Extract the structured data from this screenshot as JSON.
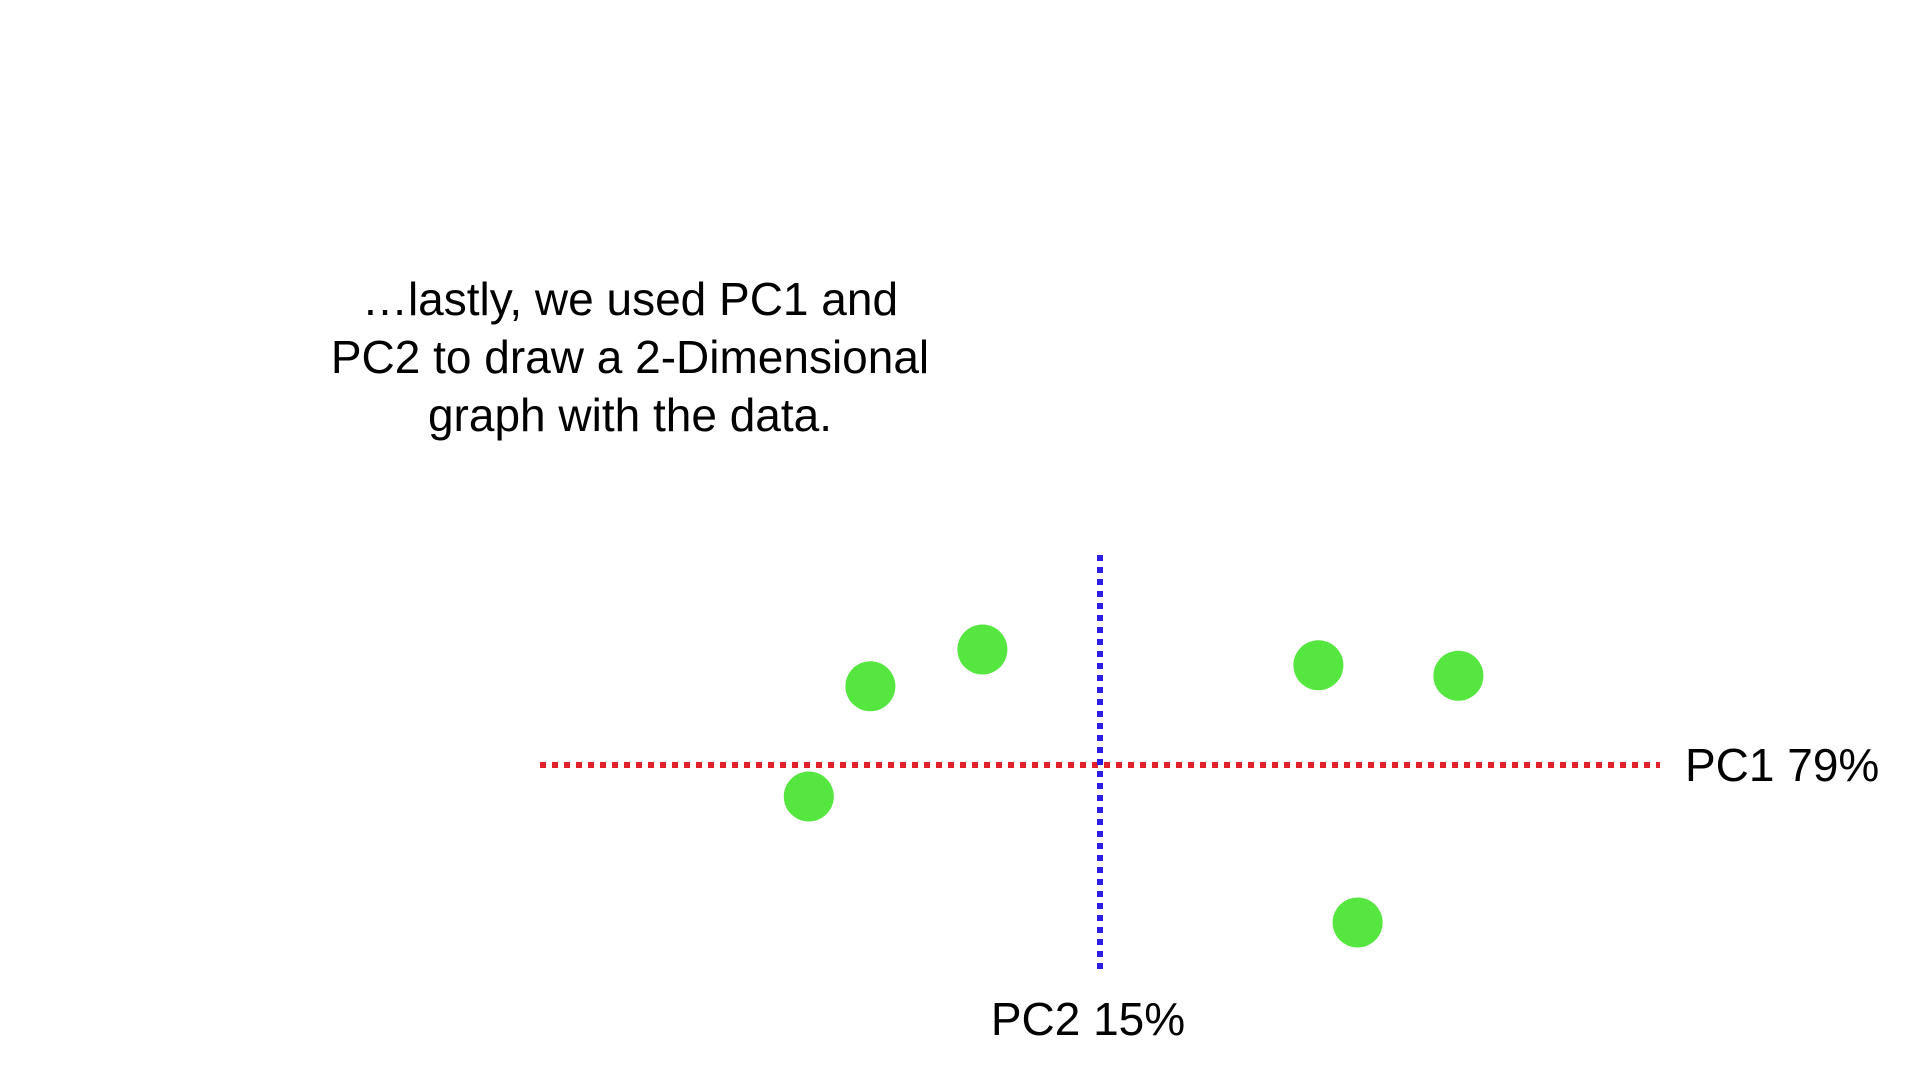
{
  "caption": "…lastly, we used PC1 and PC2 to draw a 2-Dimensional graph with the data.",
  "chart_data": {
    "type": "scatter",
    "title": "",
    "xlabel": "PC1 79%",
    "ylabel": "PC2 15%",
    "xlim": [
      -10,
      10
    ],
    "ylim": [
      -4,
      4
    ],
    "grid": false,
    "x_axis_color": "#e0202b",
    "y_axis_color": "#2a1fe0",
    "point_color": "#55e640",
    "series": [
      {
        "x": [
          -5.2,
          -4.1,
          -2.1,
          3.9,
          6.4,
          4.6
        ],
        "y": [
          -0.6,
          1.5,
          2.2,
          1.9,
          1.7,
          -3.0
        ]
      }
    ]
  }
}
